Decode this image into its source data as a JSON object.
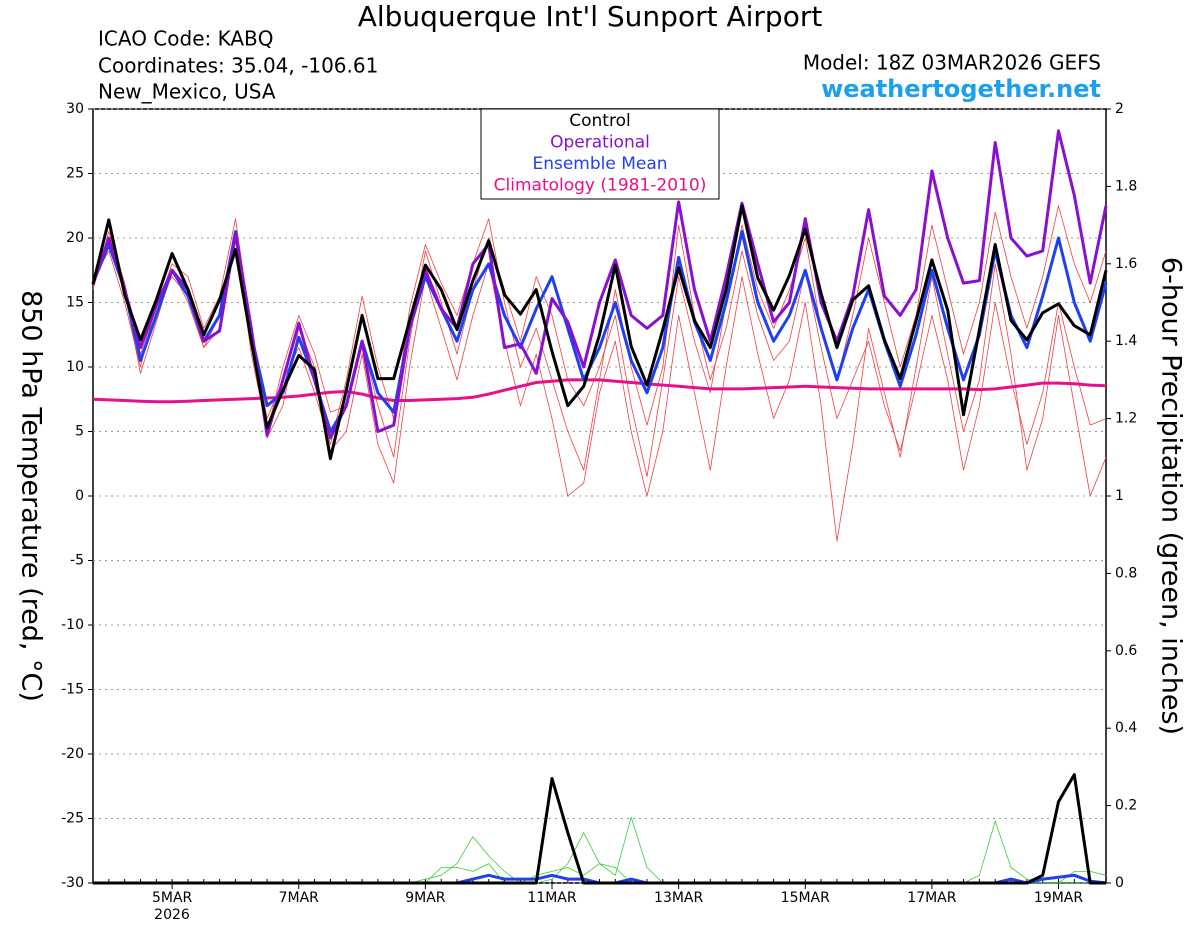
{
  "chart_data": {
    "type": "line",
    "title": "Albuquerque Int'l Sunport Airport",
    "icao": "ICAO Code: KABQ",
    "coordinates": "Coordinates: 35.04, -106.61",
    "location": "New_Mexico, USA",
    "model": "Model: 18Z 03MAR2026 GEFS",
    "source": "weathertogether.net",
    "ylabel": "850 hPa Temperature (red, °C)",
    "y2label": "6-hour Precipitation (green, inches)",
    "year_label": "2026",
    "categories": [
      null,
      null,
      null,
      null,
      null,
      "5MAR",
      null,
      null,
      null,
      null,
      null,
      null,
      null,
      "7MAR",
      null,
      null,
      null,
      null,
      null,
      null,
      null,
      "9MAR",
      null,
      null,
      null,
      null,
      null,
      null,
      null,
      "11MAR",
      null,
      null,
      null,
      null,
      null,
      null,
      null,
      "13MAR",
      null,
      null,
      null,
      null,
      null,
      null,
      null,
      "15MAR",
      null,
      null,
      null,
      null,
      null,
      null,
      null,
      "17MAR",
      null,
      null,
      null,
      null,
      null,
      null,
      null,
      "19MAR",
      null,
      null,
      null
    ],
    "ylim": [
      -30,
      30
    ],
    "yticks": [
      -30,
      -25,
      -20,
      -15,
      -10,
      -5,
      0,
      5,
      10,
      15,
      20,
      25,
      30
    ],
    "y2lim": [
      0,
      2
    ],
    "y2ticks": [
      0,
      0.2,
      0.4,
      0.6,
      0.8,
      1,
      1.2,
      1.4,
      1.6,
      1.8,
      2
    ],
    "grid": true,
    "series": [
      {
        "name": "Control",
        "color": "#000000",
        "values": [
          16.4,
          21.4,
          15.6,
          12.1,
          15.2,
          18.8,
          16,
          12.5,
          15.2,
          19.1,
          12,
          5.3,
          8.2,
          10.9,
          9.8,
          2.9,
          8.2,
          14,
          9.1,
          9.1,
          13.6,
          17.9,
          16,
          12.9,
          16.7,
          19.8,
          15.6,
          14.1,
          16,
          11.2,
          7,
          8.5,
          12.5,
          17.9,
          11.6,
          8.6,
          12.9,
          17.7,
          13.6,
          11.5,
          16,
          22.5,
          16.9,
          14.4,
          17.1,
          20.7,
          15.7,
          11.5,
          15.2,
          16.3,
          12.1,
          9.1,
          13.6,
          18.3,
          14.4,
          6.3,
          12.9,
          19.5,
          13.6,
          12.1,
          14.2,
          14.9,
          13.2,
          12.5,
          17.5
        ]
      },
      {
        "name": "Operational",
        "color": "#8a10d0",
        "values": [
          16.4,
          20,
          16,
          11.5,
          14.8,
          17.5,
          16,
          12,
          12.8,
          20.3,
          13,
          4.7,
          9,
          13.4,
          9,
          4.5,
          7,
          12,
          5,
          5.5,
          13,
          17.5,
          14.5,
          13,
          18,
          19.5,
          11.5,
          11.8,
          9.5,
          15.3,
          13.5,
          10,
          15,
          18.3,
          14,
          13,
          14,
          22.8,
          16,
          12,
          17,
          22.7,
          18,
          13.5,
          15,
          21.5,
          15,
          12,
          15.5,
          22.2,
          15.5,
          14,
          16,
          25.2,
          20,
          16.5,
          16.7,
          27.4,
          20,
          18.6,
          19,
          28.3,
          23.3,
          16.5,
          22.5
        ]
      },
      {
        "name": "Ensemble Mean",
        "color": "#2040f0",
        "values": [
          16.5,
          19.5,
          16,
          10.5,
          14,
          17.5,
          15.5,
          12,
          14,
          20.5,
          12.5,
          7,
          8,
          12.3,
          9,
          5,
          7,
          12,
          8,
          6.5,
          13,
          17,
          14.5,
          12,
          16,
          18,
          14,
          11.5,
          14.5,
          17,
          13,
          9,
          11.5,
          15,
          10.5,
          8,
          11.5,
          18.5,
          13.5,
          10.5,
          15,
          20.5,
          15,
          12,
          14,
          17.5,
          13,
          9,
          13,
          16,
          12,
          8.5,
          12.5,
          17.5,
          13,
          9,
          12.5,
          19,
          14,
          11.5,
          15.5,
          20,
          15,
          12,
          16.5
        ]
      },
      {
        "name": "Climatology (1981-2010)",
        "color": "#e8108a",
        "values": [
          7.5,
          7.45,
          7.4,
          7.35,
          7.3,
          7.3,
          7.35,
          7.4,
          7.45,
          7.5,
          7.55,
          7.6,
          7.65,
          7.75,
          7.9,
          8.05,
          8.1,
          7.9,
          7.6,
          7.4,
          7.4,
          7.45,
          7.5,
          7.55,
          7.65,
          7.9,
          8.2,
          8.5,
          8.8,
          8.9,
          9.0,
          9.0,
          9.0,
          8.9,
          8.8,
          8.7,
          8.6,
          8.5,
          8.4,
          8.3,
          8.3,
          8.3,
          8.35,
          8.4,
          8.45,
          8.5,
          8.45,
          8.4,
          8.35,
          8.3,
          8.3,
          8.3,
          8.3,
          8.3,
          8.3,
          8.3,
          8.25,
          8.3,
          8.45,
          8.6,
          8.75,
          8.75,
          8.7,
          8.6,
          8.55
        ]
      }
    ],
    "ensemble_members": {
      "color": "#f04040",
      "values": [
        [
          16,
          20.5,
          16.5,
          11,
          14.5,
          18,
          17,
          13,
          15.5,
          21.5,
          13,
          6,
          9,
          11.5,
          8,
          4,
          9,
          15.5,
          10,
          6,
          14.5,
          19.5,
          16.5,
          14,
          18,
          21.5,
          15,
          10,
          13,
          9,
          5,
          2,
          9,
          16,
          10,
          5.5,
          10,
          21,
          14,
          9,
          13,
          19,
          14,
          10.5,
          12,
          17.5,
          11.5,
          6,
          9,
          12,
          7,
          3.5,
          8.5,
          14,
          9,
          2,
          7,
          15,
          9,
          4,
          8,
          15,
          10,
          5.5,
          6
        ],
        [
          16.8,
          19,
          15,
          10,
          15,
          17,
          15.5,
          11.5,
          14,
          20,
          11,
          5,
          10,
          14,
          11,
          6.5,
          7,
          12,
          7,
          3,
          12,
          19,
          15,
          11,
          16,
          20,
          16,
          12,
          17,
          14,
          9,
          7,
          10,
          14,
          7,
          1.5,
          9,
          17,
          12,
          8,
          15,
          21,
          16,
          13,
          16,
          20,
          13,
          9,
          14,
          20,
          15,
          10,
          14,
          21,
          16,
          11,
          15,
          22,
          17,
          13,
          17,
          22.5,
          18,
          15,
          19
        ],
        [
          16.2,
          19.8,
          15.8,
          9.5,
          13.5,
          17.5,
          15,
          11.5,
          13,
          20,
          12,
          4.5,
          7,
          13,
          10,
          3.5,
          5,
          11,
          4,
          1,
          10,
          17,
          13,
          9,
          14,
          18,
          12,
          7,
          11,
          6,
          0,
          1,
          8,
          12,
          5,
          0,
          5,
          14,
          8,
          2,
          10,
          17,
          11,
          6,
          9,
          15,
          7,
          -3.5,
          4,
          13,
          8,
          3,
          10,
          17,
          11,
          5,
          9,
          18,
          11,
          2,
          6,
          14,
          7,
          0,
          3
        ]
      ]
    },
    "precipitation": {
      "axis": "y2",
      "control": {
        "color": "#000000",
        "values": [
          0,
          0,
          0,
          0,
          0,
          0,
          0,
          0,
          0,
          0,
          0,
          0,
          0,
          0,
          0,
          0,
          0,
          0,
          0,
          0,
          0,
          0,
          0,
          0,
          0,
          0,
          0,
          0,
          0,
          0.27,
          0.13,
          0,
          0,
          0,
          0,
          0,
          0,
          0,
          0,
          0,
          0,
          0,
          0,
          0,
          0,
          0,
          0,
          0,
          0,
          0,
          0,
          0,
          0,
          0,
          0,
          0,
          0,
          0,
          0,
          0,
          0.02,
          0.21,
          0.28,
          0,
          0
        ]
      },
      "mean": {
        "color": "#2040f0",
        "values": [
          0,
          0,
          0,
          0,
          0,
          0,
          0,
          0,
          0,
          0,
          0,
          0,
          0,
          0,
          0,
          0,
          0,
          0,
          0,
          0,
          0,
          0,
          0,
          0,
          0.01,
          0.02,
          0.01,
          0.01,
          0.01,
          0.02,
          0.01,
          0.01,
          0,
          0,
          0.01,
          0,
          0,
          0,
          0,
          0,
          0,
          0,
          0,
          0,
          0,
          0,
          0,
          0,
          0,
          0,
          0,
          0,
          0,
          0,
          0,
          0,
          0,
          0,
          0.01,
          0,
          0.01,
          0.015,
          0.02,
          0.005,
          0
        ]
      },
      "members": {
        "color": "#30d030",
        "values": [
          [
            0,
            0,
            0,
            0,
            0,
            0,
            0,
            0,
            0,
            0,
            0,
            0,
            0,
            0,
            0,
            0,
            0,
            0,
            0,
            0,
            0,
            0.01,
            0.02,
            0.05,
            0.12,
            0.07,
            0.03,
            0,
            0,
            0.01,
            0.05,
            0.13,
            0.05,
            0.02,
            0.17,
            0.04,
            0,
            0,
            0,
            0,
            0,
            0,
            0,
            0,
            0,
            0,
            0,
            0,
            0,
            0,
            0,
            0,
            0,
            0,
            0,
            0,
            0,
            0,
            0,
            0,
            0,
            0,
            0,
            0,
            0
          ],
          [
            0,
            0,
            0,
            0,
            0,
            0,
            0,
            0,
            0,
            0,
            0,
            0,
            0,
            0,
            0,
            0,
            0,
            0,
            0,
            0,
            0,
            0,
            0.04,
            0.04,
            0.03,
            0.05,
            0,
            0,
            0.02,
            0.03,
            0.04,
            0.02,
            0.05,
            0.04,
            0,
            0,
            0,
            0,
            0,
            0,
            0,
            0,
            0,
            0,
            0,
            0,
            0,
            0,
            0,
            0,
            0,
            0,
            0,
            0,
            0,
            0,
            0.02,
            0.16,
            0.04,
            0.01,
            0,
            0,
            0.03,
            0.03,
            0.02
          ]
        ]
      }
    }
  }
}
